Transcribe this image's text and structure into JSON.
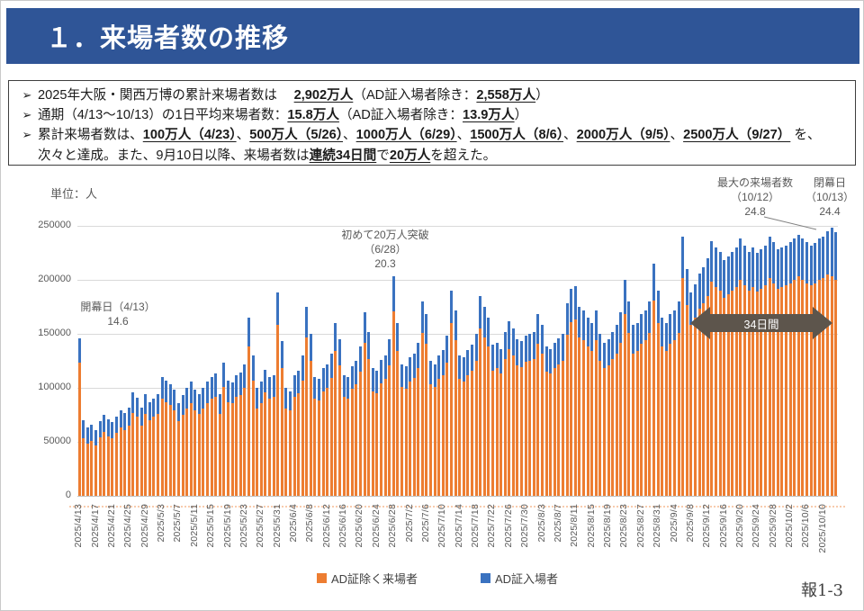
{
  "header": {
    "title": "１．来場者数の推移"
  },
  "summary_box": {
    "bullet_glyph": "➢",
    "bullets": [
      {
        "segments": [
          {
            "t": "2025年大阪・関西万博の累計来場者数は　 ",
            "b": false
          },
          {
            "t": "2,902万人",
            "b": true
          },
          {
            "t": "（AD証入場者除き：",
            "b": false
          },
          {
            "t": "2,558万人",
            "b": true
          },
          {
            "t": "）",
            "b": false
          }
        ]
      },
      {
        "segments": [
          {
            "t": "通期（4/13～10/13）の1日平均来場者数：",
            "b": false
          },
          {
            "t": "15.8万人",
            "b": true
          },
          {
            "t": "（AD証入場者除き：",
            "b": false
          },
          {
            "t": "13.9万人",
            "b": true
          },
          {
            "t": "）",
            "b": false
          }
        ]
      },
      {
        "segments": [
          {
            "t": "累計来場者数は、",
            "b": false
          },
          {
            "t": "100万人（4/23）",
            "b": true
          },
          {
            "t": "、",
            "b": false
          },
          {
            "t": "500万人（5/26）",
            "b": true
          },
          {
            "t": "、",
            "b": false
          },
          {
            "t": "1000万人（6/29）",
            "b": true
          },
          {
            "t": "、",
            "b": false
          },
          {
            "t": "1500万人（8/6）",
            "b": true
          },
          {
            "t": "、",
            "b": false
          },
          {
            "t": "2000万人（9/5）",
            "b": true
          },
          {
            "t": "、",
            "b": false
          },
          {
            "t": "2500万人（9/27）",
            "b": true
          },
          {
            "t": " を、次々と達成。また、9月10日以降、来場者数は",
            "b": false
          },
          {
            "t": "連続34日間",
            "b": true
          },
          {
            "t": "で",
            "b": false
          },
          {
            "t": "20万人",
            "b": true
          },
          {
            "t": "を超えた。",
            "b": false
          }
        ]
      }
    ]
  },
  "chart": {
    "unit_label": "単位：人",
    "y_tick_labels": [
      "250000",
      "200000",
      "150000",
      "100000",
      "50000",
      "0"
    ],
    "annotations": {
      "opening": [
        "開幕日（4/13）",
        "14.6"
      ],
      "first200k": [
        "初めて20万人突破",
        "（6/28）",
        "20.3"
      ],
      "max": [
        "最大の来場者数",
        "（10/12）",
        "24.8"
      ],
      "closing": [
        "閉幕日",
        "（10/13）",
        "24.4"
      ],
      "arrow_label": "34日間"
    },
    "legend": [
      {
        "label": "AD証除く来場者",
        "color": "#ED7D31"
      },
      {
        "label": "AD証入場者",
        "color": "#3A72C0"
      }
    ]
  },
  "chart_data": {
    "type": "bar",
    "stacked": true,
    "title": "来場者数の推移",
    "ylabel": "人",
    "ylim": [
      0,
      250000
    ],
    "grid": true,
    "x_start": "2025/4/13",
    "x_end": "2025/10/13",
    "x_frequency": "daily",
    "x_tick_labels": [
      "2025/4/13",
      "2025/4/17",
      "2025/4/21",
      "2025/4/25",
      "2025/4/29",
      "2025/5/3",
      "2025/5/7",
      "2025/5/11",
      "2025/5/15",
      "2025/5/19",
      "2025/5/23",
      "2025/5/27",
      "2025/5/31",
      "2025/6/4",
      "2025/6/8",
      "2025/6/12",
      "2025/6/16",
      "2025/6/20",
      "2025/6/24",
      "2025/6/28",
      "2025/7/2",
      "2025/7/6",
      "2025/7/10",
      "2025/7/14",
      "2025/7/18",
      "2025/7/22",
      "2025/7/26",
      "2025/7/30",
      "2025/8/3",
      "2025/8/7",
      "2025/8/11",
      "2025/8/15",
      "2025/8/19",
      "2025/8/23",
      "2025/8/27",
      "2025/8/31",
      "2025/9/4",
      "2025/9/8",
      "2025/9/12",
      "2025/9/16",
      "2025/9/20",
      "2025/9/24",
      "2025/9/28",
      "2025/10/2",
      "2025/10/6",
      "2025/10/10"
    ],
    "series": [
      {
        "name": "AD証除く来場者",
        "color": "#ED7D31",
        "values": [
          123000,
          53000,
          48000,
          51000,
          47000,
          54000,
          59000,
          55000,
          53000,
          58000,
          63000,
          61000,
          65000,
          77000,
          73000,
          65000,
          76000,
          70000,
          73000,
          76000,
          90000,
          87000,
          84000,
          79000,
          69000,
          75000,
          81000,
          86000,
          79000,
          76000,
          81000,
          86000,
          90000,
          92000,
          76000,
          101000,
          87000,
          86000,
          92000,
          93000,
          100000,
          138000,
          107000,
          81000,
          86000,
          96000,
          90000,
          92000,
          158000,
          118000,
          81000,
          79000,
          92000,
          95000,
          107000,
          147000,
          125000,
          90000,
          88000,
          97000,
          100000,
          109000,
          134000,
          121000,
          92000,
          90000,
          99000,
          103000,
          115000,
          142000,
          127000,
          97000,
          95000,
          104000,
          108000,
          121000,
          171000,
          134000,
          101000,
          99000,
          106000,
          109000,
          118000,
          151000,
          141000,
          103000,
          101000,
          108000,
          112000,
          123000,
          160000,
          144000,
          108000,
          106000,
          112000,
          116000,
          125000,
          155000,
          147000,
          138000,
          116000,
          118000,
          113000,
          127000,
          136000,
          130000,
          121000,
          119000,
          124000,
          125000,
          127000,
          141000,
          132000,
          115000,
          113000,
          118000,
          122000,
          125000,
          149000,
          161000,
          163000,
          147000,
          144000,
          138000,
          134000,
          144000,
          125000,
          118000,
          121000,
          127000,
          132000,
          142000,
          168000,
          151000,
          132000,
          134000,
          141000,
          144000,
          151000,
          181000,
          160000,
          138000,
          134000,
          141000,
          144000,
          151000,
          202000,
          177000,
          158000,
          165000,
          173000,
          178000,
          185000,
          198000,
          193000,
          190000,
          183000,
          187000,
          190000,
          193000,
          200000,
          195000,
          190000,
          193000,
          189000,
          192000,
          195000,
          202000,
          197000,
          192000,
          193000,
          195000,
          197000,
          200000,
          203000,
          200000,
          197000,
          195000,
          197000,
          200000,
          202000,
          205000,
          203000,
          200000
        ]
      },
      {
        "name": "AD証入場者",
        "color": "#3A72C0",
        "values": [
          23000,
          17000,
          15000,
          15000,
          14000,
          15000,
          16000,
          16000,
          15000,
          15000,
          16000,
          16000,
          17000,
          19000,
          18000,
          17000,
          18000,
          17000,
          17000,
          18000,
          20000,
          20000,
          19000,
          19000,
          17000,
          18000,
          19000,
          20000,
          19000,
          18000,
          19000,
          20000,
          20000,
          21000,
          18000,
          22000,
          20000,
          19000,
          20000,
          21000,
          22000,
          27000,
          23000,
          19000,
          20000,
          21000,
          20000,
          20000,
          30000,
          25000,
          19000,
          18000,
          20000,
          21000,
          23000,
          28000,
          25000,
          20000,
          20000,
          21000,
          22000,
          23000,
          26000,
          24000,
          20000,
          20000,
          21000,
          22000,
          23000,
          28000,
          25000,
          21000,
          21000,
          22000,
          22000,
          24000,
          32000,
          26000,
          21000,
          21000,
          22000,
          23000,
          24000,
          29000,
          27000,
          22000,
          21000,
          22000,
          23000,
          25000,
          30000,
          28000,
          22000,
          22000,
          23000,
          24000,
          25000,
          30000,
          28000,
          27000,
          24000,
          24000,
          23000,
          25000,
          26000,
          25000,
          24000,
          24000,
          24000,
          25000,
          25000,
          27000,
          26000,
          23000,
          23000,
          24000,
          24000,
          25000,
          29000,
          31000,
          31000,
          28000,
          28000,
          27000,
          26000,
          28000,
          25000,
          24000,
          24000,
          25000,
          26000,
          28000,
          32000,
          29000,
          26000,
          26000,
          27000,
          28000,
          29000,
          34000,
          30000,
          27000,
          26000,
          27000,
          28000,
          29000,
          38000,
          33000,
          30000,
          31000,
          33000,
          34000,
          35000,
          38000,
          37000,
          36000,
          35000,
          35000,
          36000,
          37000,
          38000,
          37000,
          36000,
          37000,
          36000,
          36000,
          37000,
          38000,
          38000,
          36000,
          37000,
          37000,
          38000,
          38000,
          39000,
          38000,
          38000,
          37000,
          37000,
          38000,
          38000,
          40000,
          45000,
          44000
        ]
      }
    ]
  },
  "footer": {
    "page_label": "報1-3"
  }
}
